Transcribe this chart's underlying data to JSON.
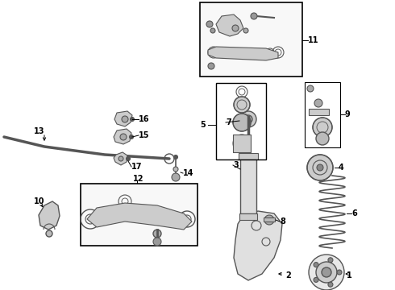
{
  "bg_color": "#ffffff",
  "fig_width": 4.9,
  "fig_height": 3.6,
  "dpi": 100,
  "gray": "#888888",
  "dgray": "#555555",
  "lgray": "#cccccc",
  "black": "#000000"
}
